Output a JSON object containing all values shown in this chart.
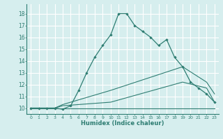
{
  "xlabel": "Humidex (Indice chaleur)",
  "bg_color": "#d6eeee",
  "grid_color": "#ffffff",
  "line_color": "#2e7d72",
  "xlim": [
    -0.5,
    23.5
  ],
  "ylim": [
    9.5,
    18.8
  ],
  "xticks": [
    0,
    1,
    2,
    3,
    4,
    5,
    6,
    7,
    8,
    9,
    10,
    11,
    12,
    13,
    14,
    15,
    16,
    17,
    18,
    19,
    20,
    21,
    22,
    23
  ],
  "yticks": [
    10,
    11,
    12,
    13,
    14,
    15,
    16,
    17,
    18
  ],
  "series_no_marker": [
    {
      "x": [
        0,
        23
      ],
      "y": [
        10,
        10
      ]
    },
    {
      "x": [
        0,
        3,
        4,
        10,
        19,
        22,
        23
      ],
      "y": [
        10,
        10,
        10.2,
        10.5,
        12.2,
        11.7,
        10.5
      ]
    },
    {
      "x": [
        0,
        3,
        4,
        10,
        19,
        22,
        23
      ],
      "y": [
        10,
        10,
        10.3,
        11.5,
        13.5,
        12.2,
        11.2
      ]
    }
  ],
  "series_with_marker": [
    {
      "x": [
        0,
        1,
        2,
        3,
        4,
        5,
        6,
        7,
        8,
        9,
        10,
        11,
        12,
        13,
        14,
        15,
        16,
        17,
        18,
        19,
        20,
        21,
        22,
        23
      ],
      "y": [
        10,
        10,
        10,
        10,
        9.9,
        10.2,
        11.5,
        13.0,
        14.3,
        15.3,
        16.2,
        18.0,
        18.0,
        17.0,
        16.5,
        16.0,
        15.3,
        15.8,
        14.3,
        13.5,
        12.2,
        11.7,
        11.2,
        10.5
      ]
    }
  ]
}
